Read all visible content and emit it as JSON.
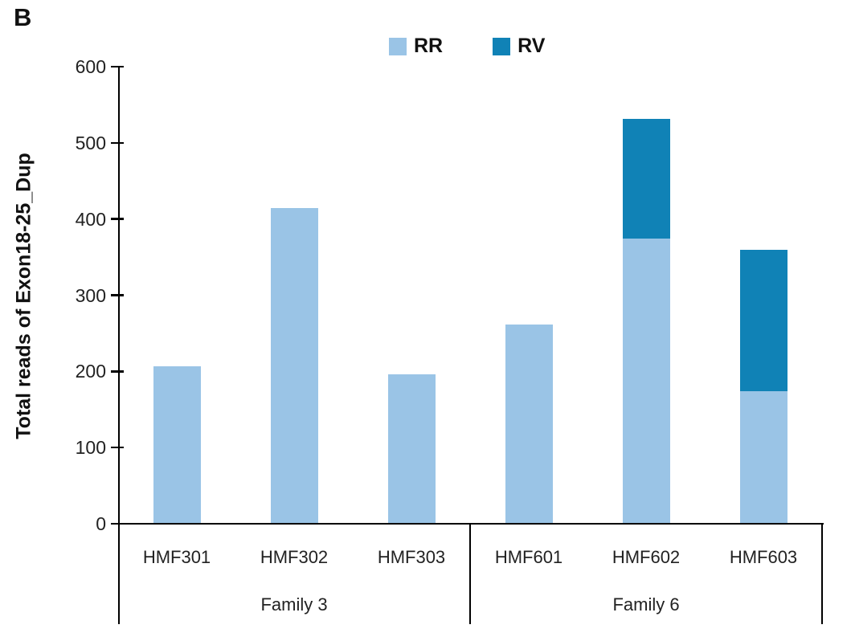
{
  "panel_label": "B",
  "colors": {
    "rr": "#9AC4E6",
    "rv": "#1082B6",
    "axis": "#000000",
    "text": "#111111"
  },
  "legend": {
    "position": "top-center",
    "items": [
      {
        "label": "RR",
        "color": "#9AC4E6"
      },
      {
        "label": "RV",
        "color": "#1082B6"
      }
    ]
  },
  "chart_data": {
    "type": "bar",
    "stacked": true,
    "title": "",
    "xlabel": "",
    "ylabel": "Total reads of Exon18-25_Dup",
    "ylim": [
      0,
      600
    ],
    "yticks": [
      0,
      100,
      200,
      300,
      400,
      500,
      600
    ],
    "grid": false,
    "legend_position": "top",
    "categories": [
      "HMF301",
      "HMF302",
      "HMF303",
      "HMF601",
      "HMF602",
      "HMF603"
    ],
    "series": [
      {
        "name": "RR",
        "color": "#9AC4E6",
        "values": [
          205,
          413,
          195,
          260,
          373,
          173
        ]
      },
      {
        "name": "RV",
        "color": "#1082B6",
        "values": [
          0,
          0,
          0,
          0,
          157,
          185
        ]
      }
    ],
    "totals": [
      205,
      413,
      195,
      260,
      530,
      358
    ],
    "groups": [
      {
        "label": "Family 3",
        "span": [
          0,
          2
        ]
      },
      {
        "label": "Family 6",
        "span": [
          3,
          5
        ]
      }
    ]
  }
}
